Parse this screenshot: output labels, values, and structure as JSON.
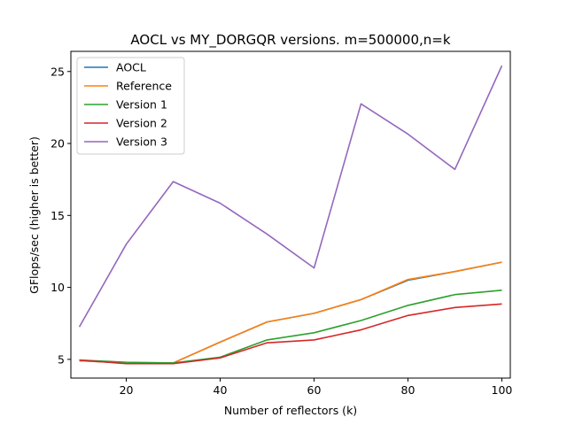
{
  "chart_data": {
    "type": "line",
    "title": "AOCL vs MY_DORGQR versions. m=500000,n=k",
    "xlabel": "Number of reflectors (k)",
    "ylabel": "GFlops/sec (higher is better)",
    "xlim": [
      8.2,
      101.8
    ],
    "ylim": [
      3.7,
      26.4
    ],
    "xticks": [
      20,
      40,
      60,
      80,
      100
    ],
    "yticks": [
      5,
      10,
      15,
      20,
      25
    ],
    "grid": false,
    "legend_position": "upper-left",
    "x": [
      10,
      20,
      30,
      40,
      50,
      60,
      70,
      80,
      90,
      100
    ],
    "series": [
      {
        "name": "AOCL",
        "color": "#1f77b4",
        "values": [
          4.9,
          4.75,
          4.75,
          6.2,
          7.6,
          8.2,
          9.15,
          10.5,
          11.1,
          11.75
        ]
      },
      {
        "name": "Reference",
        "color": "#ff7f0e",
        "values": [
          4.9,
          4.75,
          4.75,
          6.2,
          7.6,
          8.2,
          9.15,
          10.55,
          11.1,
          11.75
        ]
      },
      {
        "name": "Version 1",
        "color": "#2ca02c",
        "values": [
          4.95,
          4.8,
          4.75,
          5.15,
          6.35,
          6.85,
          7.7,
          8.75,
          9.5,
          9.8
        ]
      },
      {
        "name": "Version 2",
        "color": "#d62728",
        "values": [
          4.95,
          4.7,
          4.7,
          5.1,
          6.15,
          6.35,
          7.05,
          8.05,
          8.6,
          8.85
        ]
      },
      {
        "name": "Version 3",
        "color": "#9467bd",
        "values": [
          7.25,
          13.0,
          17.35,
          15.85,
          13.7,
          11.35,
          22.75,
          20.65,
          18.2,
          25.4
        ]
      }
    ]
  }
}
